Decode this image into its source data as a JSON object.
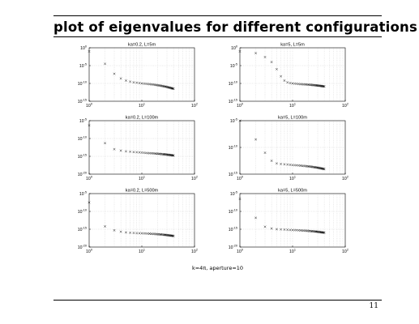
{
  "page": {
    "title": "plot of eigenvalues for different configurations",
    "footnote": "k=4π, aperture=10",
    "page_number": "11"
  },
  "chart_data": [
    {
      "type": "scatter",
      "title": "ka=0.2, L=5m",
      "marker": "x",
      "x_scale": "log",
      "y_scale": "log",
      "xlim": [
        1,
        100
      ],
      "ylim_exp": [
        -15,
        0
      ],
      "x_ticks": [
        {
          "base": "10",
          "exp": "0"
        },
        {
          "base": "10",
          "exp": "1"
        },
        {
          "base": "10",
          "exp": "2"
        }
      ],
      "y_ticks": [
        {
          "base": "10",
          "exp": "0"
        },
        {
          "base": "10",
          "exp": "-5"
        },
        {
          "base": "10",
          "exp": "-10"
        },
        {
          "base": "10",
          "exp": "-15"
        }
      ],
      "x": [
        1,
        2,
        3,
        4,
        5,
        6,
        7,
        8,
        9,
        10,
        11,
        12,
        13,
        14,
        15,
        16,
        17,
        18,
        19,
        20,
        21,
        22,
        23,
        24,
        25,
        26,
        27,
        28,
        29,
        30,
        31,
        32,
        33,
        34,
        35,
        36,
        37,
        38,
        39,
        40
      ],
      "y_exp": [
        -1,
        -4.5,
        -7.3,
        -8.6,
        -9.2,
        -9.5,
        -9.7,
        -9.8,
        -9.9,
        -10,
        -10.05,
        -10.1,
        -10.15,
        -10.2,
        -10.25,
        -10.3,
        -10.35,
        -10.4,
        -10.45,
        -10.5,
        -10.55,
        -10.6,
        -10.65,
        -10.7,
        -10.75,
        -10.8,
        -10.85,
        -10.9,
        -10.95,
        -11,
        -11.05,
        -11.1,
        -11.15,
        -11.2,
        -11.25,
        -11.3,
        -11.35,
        -11.4,
        -11.45,
        -11.5
      ]
    },
    {
      "type": "scatter",
      "title": "ka=5, L=5m",
      "marker": "x",
      "x_scale": "log",
      "y_scale": "log",
      "xlim": [
        1,
        100
      ],
      "ylim_exp": [
        -15,
        0
      ],
      "x_ticks": [
        {
          "base": "10",
          "exp": "0"
        },
        {
          "base": "10",
          "exp": "1"
        },
        {
          "base": "10",
          "exp": "2"
        }
      ],
      "y_ticks": [
        {
          "base": "10",
          "exp": "0"
        },
        {
          "base": "10",
          "exp": "-5"
        },
        {
          "base": "10",
          "exp": "-10"
        },
        {
          "base": "10",
          "exp": "-15"
        }
      ],
      "x": [
        1,
        2,
        3,
        4,
        5,
        6,
        7,
        8,
        9,
        10,
        11,
        12,
        13,
        14,
        15,
        16,
        17,
        18,
        19,
        20,
        21,
        22,
        23,
        24,
        25,
        26,
        27,
        28,
        29,
        30,
        31,
        32,
        33,
        34,
        35,
        36,
        37,
        38,
        39,
        40
      ],
      "y_exp": [
        -1,
        -1.5,
        -2.6,
        -4,
        -6,
        -8,
        -9.2,
        -9.7,
        -9.9,
        -10,
        -10.05,
        -10.1,
        -10.15,
        -10.2,
        -10.22,
        -10.25,
        -10.27,
        -10.3,
        -10.32,
        -10.35,
        -10.37,
        -10.4,
        -10.42,
        -10.45,
        -10.47,
        -10.5,
        -10.52,
        -10.55,
        -10.57,
        -10.6,
        -10.62,
        -10.65,
        -10.67,
        -10.7,
        -10.72,
        -10.75,
        -10.77,
        -10.8,
        -10.82,
        -10.85
      ]
    },
    {
      "type": "scatter",
      "title": "ka=0.2, L=100m",
      "marker": "x",
      "x_scale": "log",
      "y_scale": "log",
      "xlim": [
        1,
        100
      ],
      "ylim_exp": [
        -20,
        -5
      ],
      "x_ticks": [
        {
          "base": "10",
          "exp": "0"
        },
        {
          "base": "10",
          "exp": "1"
        },
        {
          "base": "10",
          "exp": "2"
        }
      ],
      "y_ticks": [
        {
          "base": "10",
          "exp": "-5"
        },
        {
          "base": "10",
          "exp": "-10"
        },
        {
          "base": "10",
          "exp": "-15"
        },
        {
          "base": "10",
          "exp": "-20"
        }
      ],
      "x": [
        1,
        2,
        3,
        4,
        5,
        6,
        7,
        8,
        9,
        10,
        11,
        12,
        13,
        14,
        15,
        16,
        17,
        18,
        19,
        20,
        21,
        22,
        23,
        24,
        25,
        26,
        27,
        28,
        29,
        30,
        31,
        32,
        33,
        34,
        35,
        36,
        37,
        38,
        39,
        40
      ],
      "y_exp": [
        -6.3,
        -11.3,
        -13,
        -13.4,
        -13.6,
        -13.7,
        -13.8,
        -13.85,
        -13.9,
        -13.95,
        -14,
        -14.05,
        -14.1,
        -14.12,
        -14.15,
        -14.17,
        -14.2,
        -14.22,
        -14.25,
        -14.27,
        -14.3,
        -14.32,
        -14.35,
        -14.37,
        -14.4,
        -14.42,
        -14.45,
        -14.47,
        -14.5,
        -14.52,
        -14.55,
        -14.57,
        -14.6,
        -14.62,
        -14.65,
        -14.67,
        -14.7,
        -14.72,
        -14.75,
        -14.77
      ]
    },
    {
      "type": "scatter",
      "title": "ka=5, L=100m",
      "marker": "x",
      "x_scale": "log",
      "y_scale": "log",
      "xlim": [
        1,
        100
      ],
      "ylim_exp": [
        -15,
        -5
      ],
      "x_ticks": [
        {
          "base": "10",
          "exp": "0"
        },
        {
          "base": "10",
          "exp": "1"
        },
        {
          "base": "10",
          "exp": "2"
        }
      ],
      "y_ticks": [
        {
          "base": "10",
          "exp": "-5"
        },
        {
          "base": "10",
          "exp": "-10"
        },
        {
          "base": "10",
          "exp": "-15"
        }
      ],
      "x": [
        1,
        2,
        3,
        4,
        5,
        6,
        7,
        8,
        9,
        10,
        11,
        12,
        13,
        14,
        15,
        16,
        17,
        18,
        19,
        20,
        21,
        22,
        23,
        24,
        25,
        26,
        27,
        28,
        29,
        30,
        31,
        32,
        33,
        34,
        35,
        36,
        37,
        38,
        39,
        40
      ],
      "y_exp": [
        -5,
        -8.5,
        -11,
        -12.5,
        -13,
        -13.1,
        -13.15,
        -13.2,
        -13.25,
        -13.3,
        -13.32,
        -13.35,
        -13.37,
        -13.4,
        -13.42,
        -13.45,
        -13.47,
        -13.5,
        -13.52,
        -13.55,
        -13.57,
        -13.6,
        -13.62,
        -13.65,
        -13.67,
        -13.7,
        -13.72,
        -13.75,
        -13.77,
        -13.8,
        -13.82,
        -13.85,
        -13.87,
        -13.9,
        -13.92,
        -13.95,
        -13.97,
        -14,
        -14.02,
        -14.05
      ]
    },
    {
      "type": "scatter",
      "title": "ka=0.2, L=500m",
      "marker": "x",
      "x_scale": "log",
      "y_scale": "log",
      "xlim": [
        1,
        100
      ],
      "ylim_exp": [
        -20,
        -5
      ],
      "x_ticks": [
        {
          "base": "10",
          "exp": "0"
        },
        {
          "base": "10",
          "exp": "1"
        },
        {
          "base": "10",
          "exp": "2"
        }
      ],
      "y_ticks": [
        {
          "base": "10",
          "exp": "-5"
        },
        {
          "base": "10",
          "exp": "-10"
        },
        {
          "base": "10",
          "exp": "-15"
        },
        {
          "base": "10",
          "exp": "-20"
        }
      ],
      "x": [
        1,
        2,
        3,
        4,
        5,
        6,
        7,
        8,
        9,
        10,
        11,
        12,
        13,
        14,
        15,
        16,
        17,
        18,
        19,
        20,
        21,
        22,
        23,
        24,
        25,
        26,
        27,
        28,
        29,
        30,
        31,
        32,
        33,
        34,
        35,
        36,
        37,
        38,
        39,
        40
      ],
      "y_exp": [
        -7.5,
        -14.2,
        -15.3,
        -15.7,
        -15.9,
        -16,
        -16.05,
        -16.1,
        -16.12,
        -16.15,
        -16.17,
        -16.2,
        -16.22,
        -16.25,
        -16.27,
        -16.3,
        -16.32,
        -16.35,
        -16.37,
        -16.4,
        -16.42,
        -16.45,
        -16.47,
        -16.5,
        -16.52,
        -16.55,
        -16.57,
        -16.6,
        -16.62,
        -16.65,
        -16.67,
        -16.7,
        -16.72,
        -16.75,
        -16.77,
        -16.8,
        -16.82,
        -16.85,
        -16.87,
        -16.9
      ]
    },
    {
      "type": "scatter",
      "title": "ka=5, L=500m",
      "marker": "x",
      "x_scale": "log",
      "y_scale": "log",
      "xlim": [
        1,
        100
      ],
      "ylim_exp": [
        -20,
        -5
      ],
      "x_ticks": [
        {
          "base": "10",
          "exp": "0"
        },
        {
          "base": "10",
          "exp": "1"
        },
        {
          "base": "10",
          "exp": "2"
        }
      ],
      "y_ticks": [
        {
          "base": "10",
          "exp": "-5"
        },
        {
          "base": "10",
          "exp": "-10"
        },
        {
          "base": "10",
          "exp": "-15"
        },
        {
          "base": "10",
          "exp": "-20"
        }
      ],
      "x": [
        1,
        2,
        3,
        4,
        5,
        6,
        7,
        8,
        9,
        10,
        11,
        12,
        13,
        14,
        15,
        16,
        17,
        18,
        19,
        20,
        21,
        22,
        23,
        24,
        25,
        26,
        27,
        28,
        29,
        30,
        31,
        32,
        33,
        34,
        35,
        36,
        37,
        38,
        39,
        40
      ],
      "y_exp": [
        -6.5,
        -11.8,
        -14.3,
        -14.8,
        -15,
        -15.05,
        -15.1,
        -15.15,
        -15.2,
        -15.22,
        -15.25,
        -15.27,
        -15.3,
        -15.32,
        -15.35,
        -15.37,
        -15.4,
        -15.42,
        -15.45,
        -15.47,
        -15.5,
        -15.52,
        -15.55,
        -15.57,
        -15.6,
        -15.62,
        -15.65,
        -15.67,
        -15.7,
        -15.72,
        -15.75,
        -15.77,
        -15.8,
        -15.82,
        -15.85,
        -15.87,
        -15.9,
        -15.92,
        -15.95,
        -15.97
      ]
    }
  ]
}
